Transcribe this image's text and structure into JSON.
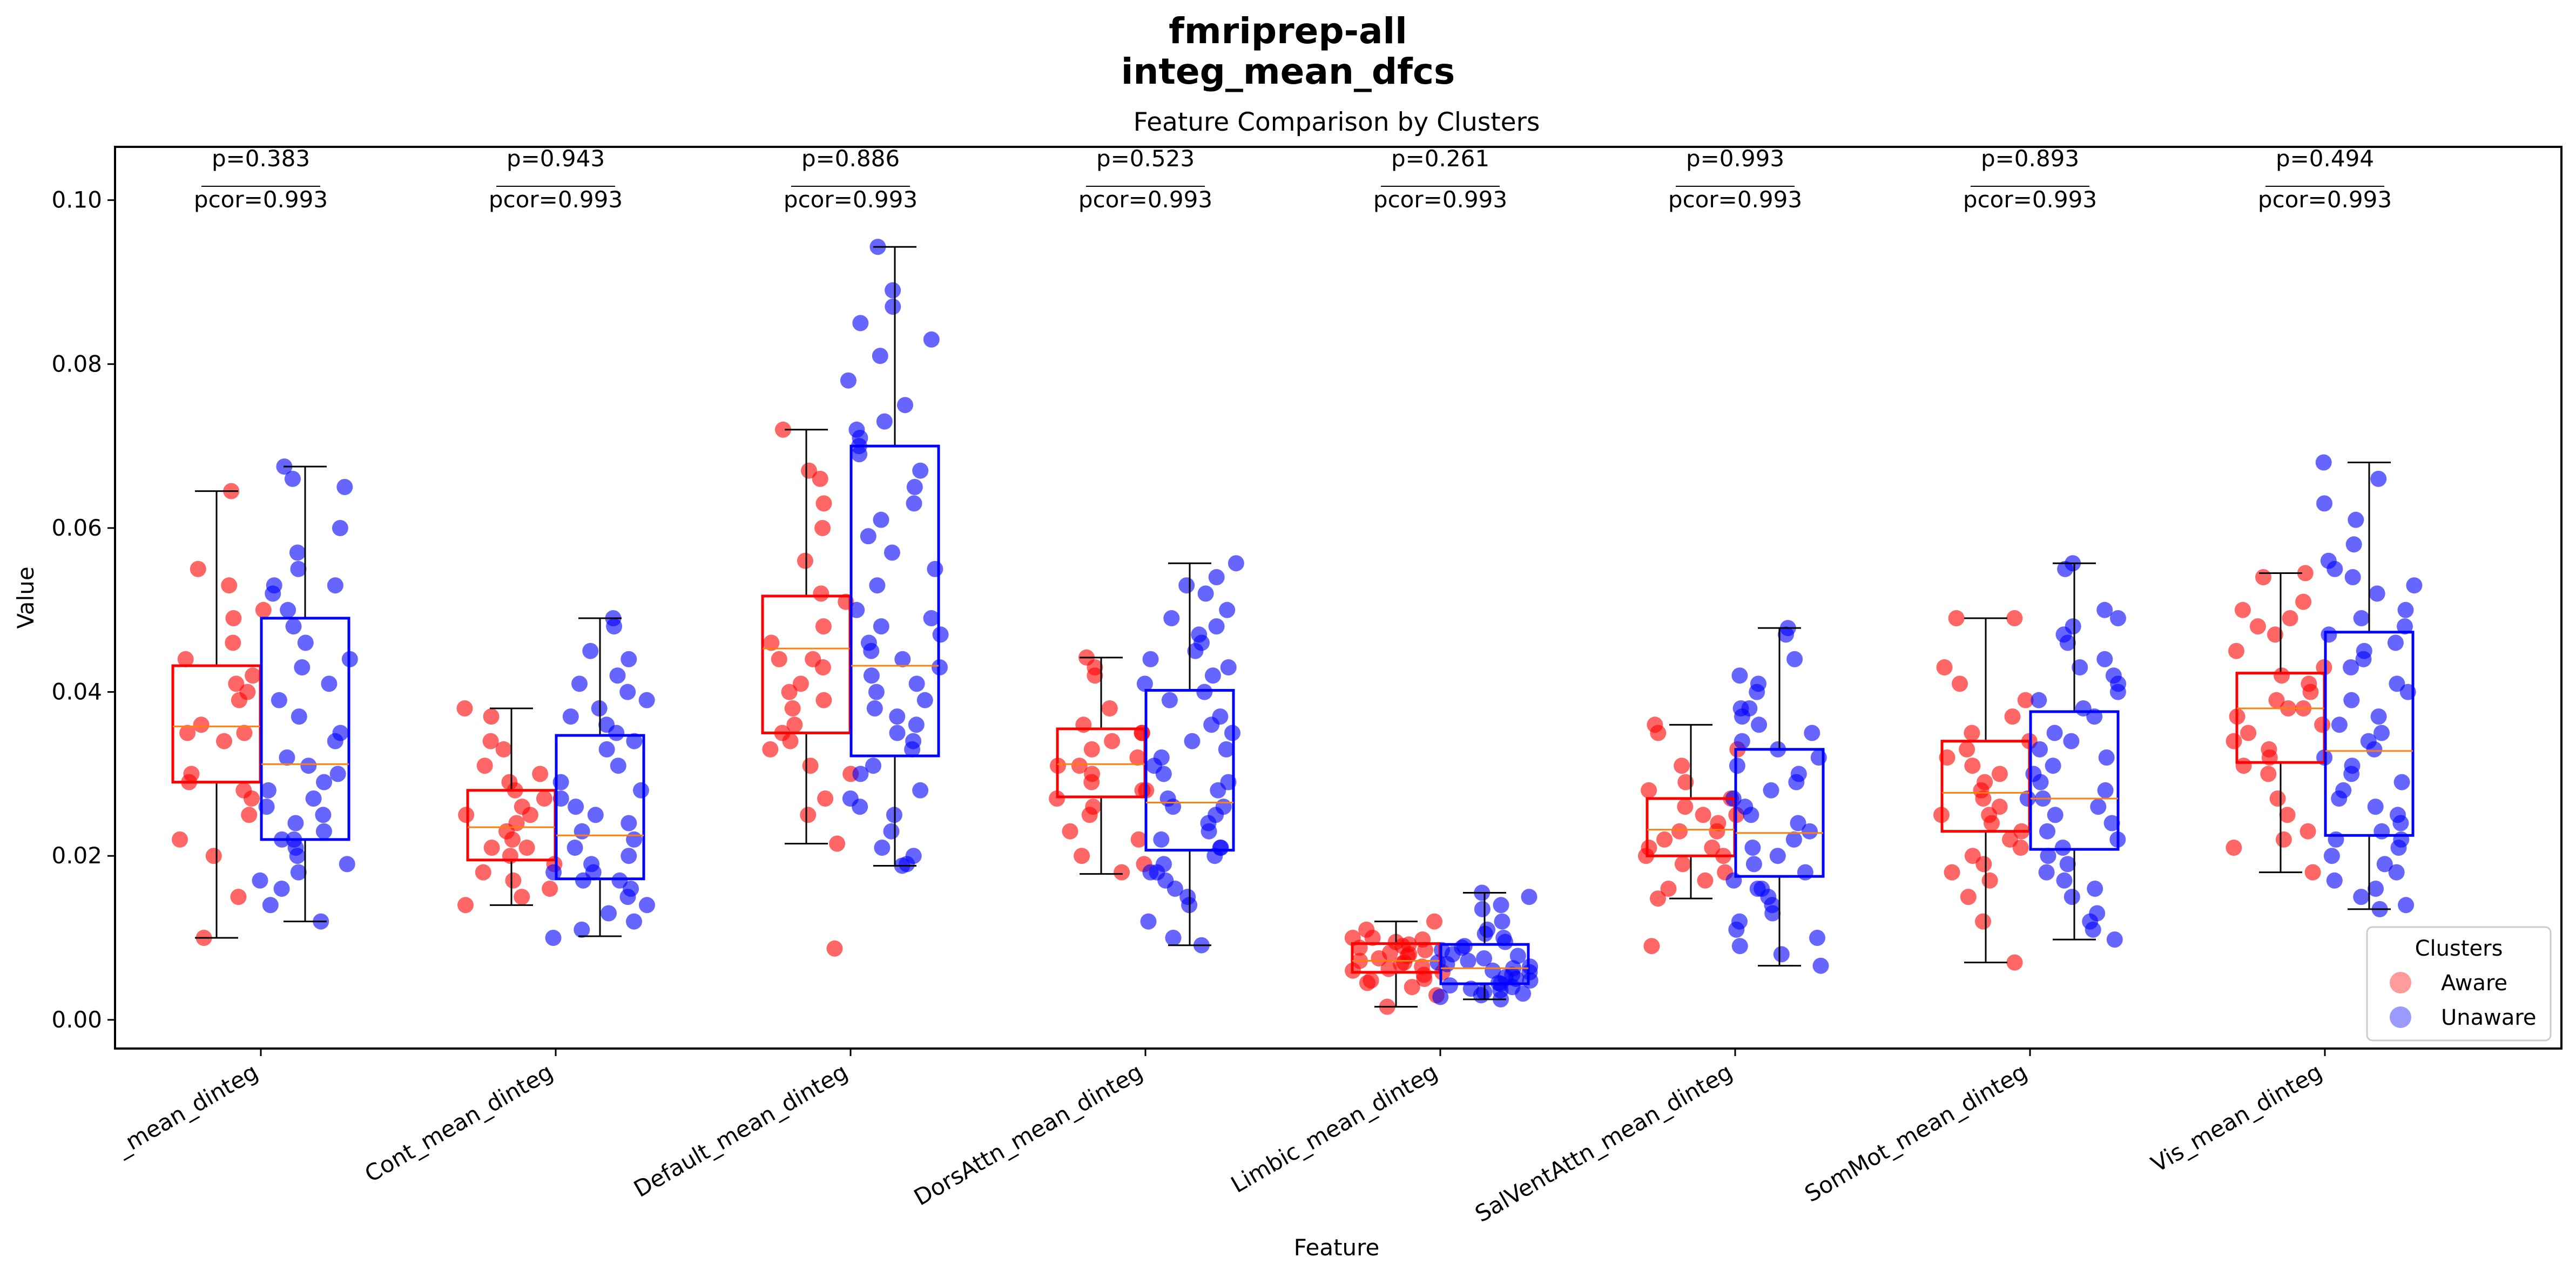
{
  "figure": {
    "title_line1": "fmriprep-all",
    "title_line2": "integ_mean_dfcs"
  },
  "chart_data": {
    "type": "box",
    "title": "Feature Comparison by Clusters",
    "xlabel": "Feature",
    "ylabel": "Value",
    "ylim": [
      -0.0035,
      0.1065
    ],
    "yticks": [
      0.0,
      0.02,
      0.04,
      0.06,
      0.08,
      0.1
    ],
    "ytick_labels": [
      "0.00",
      "0.02",
      "0.04",
      "0.06",
      "0.08",
      "0.10"
    ],
    "grid": false,
    "legend": {
      "title": "Clusters",
      "placement": "lower-right",
      "entries": [
        {
          "name": "Aware",
          "color": "#ff6666"
        },
        {
          "name": "Unaware",
          "color": "#6666ff"
        }
      ]
    },
    "series_colors": {
      "Aware": "#ff0000",
      "Unaware": "#0000ff",
      "median": "#ff7f0e"
    },
    "categories": [
      "_mean_dinteg",
      "Cont_mean_dinteg",
      "Default_mean_dinteg",
      "DorsAttn_mean_dinteg",
      "Limbic_mean_dinteg",
      "SalVentAttn_mean_dinteg",
      "SomMot_mean_dinteg",
      "Vis_mean_dinteg"
    ],
    "annotations": [
      {
        "p": "p=0.383",
        "pcor": "pcor=0.993"
      },
      {
        "p": "p=0.943",
        "pcor": "pcor=0.993"
      },
      {
        "p": "p=0.886",
        "pcor": "pcor=0.993"
      },
      {
        "p": "p=0.523",
        "pcor": "pcor=0.993"
      },
      {
        "p": "p=0.261",
        "pcor": "pcor=0.993"
      },
      {
        "p": "p=0.993",
        "pcor": "pcor=0.993"
      },
      {
        "p": "p=0.893",
        "pcor": "pcor=0.993"
      },
      {
        "p": "p=0.494",
        "pcor": "pcor=0.993"
      }
    ],
    "boxes": [
      {
        "Aware": {
          "whislo": 0.01,
          "q1": 0.029,
          "med": 0.0358,
          "q3": 0.0432,
          "whishi": 0.0645
        },
        "Unaware": {
          "whislo": 0.012,
          "q1": 0.022,
          "med": 0.0312,
          "q3": 0.049,
          "whishi": 0.0675
        }
      },
      {
        "Aware": {
          "whislo": 0.014,
          "q1": 0.0195,
          "med": 0.0235,
          "q3": 0.028,
          "whishi": 0.038
        },
        "Unaware": {
          "whislo": 0.0102,
          "q1": 0.0172,
          "med": 0.0225,
          "q3": 0.0347,
          "whishi": 0.049
        }
      },
      {
        "Aware": {
          "whislo": 0.0215,
          "q1": 0.035,
          "med": 0.0453,
          "q3": 0.0517,
          "whishi": 0.072
        },
        "Unaware": {
          "whislo": 0.0188,
          "q1": 0.0322,
          "med": 0.0432,
          "q3": 0.07,
          "whishi": 0.0943
        }
      },
      {
        "Aware": {
          "whislo": 0.0178,
          "q1": 0.0272,
          "med": 0.0312,
          "q3": 0.0355,
          "whishi": 0.0442
        },
        "Unaware": {
          "whislo": 0.0091,
          "q1": 0.0207,
          "med": 0.0265,
          "q3": 0.0402,
          "whishi": 0.0557
        }
      },
      {
        "Aware": {
          "whislo": 0.0016,
          "q1": 0.0058,
          "med": 0.0072,
          "q3": 0.0093,
          "whishi": 0.012
        },
        "Unaware": {
          "whislo": 0.0025,
          "q1": 0.0044,
          "med": 0.0063,
          "q3": 0.0092,
          "whishi": 0.0155
        }
      },
      {
        "Aware": {
          "whislo": 0.0148,
          "q1": 0.02,
          "med": 0.0232,
          "q3": 0.027,
          "whishi": 0.036
        },
        "Unaware": {
          "whislo": 0.0066,
          "q1": 0.0175,
          "med": 0.0228,
          "q3": 0.033,
          "whishi": 0.0478
        }
      },
      {
        "Aware": {
          "whislo": 0.007,
          "q1": 0.023,
          "med": 0.0277,
          "q3": 0.034,
          "whishi": 0.049
        },
        "Unaware": {
          "whislo": 0.0098,
          "q1": 0.0208,
          "med": 0.027,
          "q3": 0.0376,
          "whishi": 0.0557
        }
      },
      {
        "Aware": {
          "whislo": 0.018,
          "q1": 0.0314,
          "med": 0.038,
          "q3": 0.0423,
          "whishi": 0.0545
        },
        "Unaware": {
          "whislo": 0.0135,
          "q1": 0.0225,
          "med": 0.0328,
          "q3": 0.0473,
          "whishi": 0.068
        }
      }
    ],
    "points": [
      {
        "Aware": [
          0.0645,
          0.055,
          0.053,
          0.05,
          0.049,
          0.046,
          0.044,
          0.042,
          0.041,
          0.04,
          0.039,
          0.036,
          0.035,
          0.035,
          0.034,
          0.03,
          0.029,
          0.028,
          0.027,
          0.025,
          0.022,
          0.02,
          0.015,
          0.01
        ],
        "Unaware": [
          0.0675,
          0.066,
          0.065,
          0.06,
          0.057,
          0.055,
          0.053,
          0.053,
          0.052,
          0.05,
          0.048,
          0.046,
          0.044,
          0.043,
          0.041,
          0.039,
          0.037,
          0.035,
          0.034,
          0.032,
          0.031,
          0.03,
          0.029,
          0.028,
          0.027,
          0.026,
          0.025,
          0.024,
          0.023,
          0.022,
          0.022,
          0.021,
          0.02,
          0.019,
          0.018,
          0.017,
          0.016,
          0.014,
          0.012
        ]
      },
      {
        "Aware": [
          0.038,
          0.037,
          0.034,
          0.033,
          0.031,
          0.03,
          0.029,
          0.028,
          0.027,
          0.026,
          0.025,
          0.025,
          0.024,
          0.023,
          0.022,
          0.021,
          0.021,
          0.02,
          0.019,
          0.018,
          0.017,
          0.016,
          0.015,
          0.014
        ],
        "Unaware": [
          0.049,
          0.048,
          0.045,
          0.044,
          0.042,
          0.041,
          0.04,
          0.039,
          0.038,
          0.037,
          0.036,
          0.035,
          0.034,
          0.033,
          0.031,
          0.029,
          0.028,
          0.027,
          0.026,
          0.025,
          0.024,
          0.023,
          0.022,
          0.021,
          0.02,
          0.019,
          0.018,
          0.018,
          0.017,
          0.017,
          0.016,
          0.015,
          0.014,
          0.013,
          0.012,
          0.011,
          0.01
        ]
      },
      {
        "Aware": [
          0.072,
          0.067,
          0.066,
          0.063,
          0.06,
          0.056,
          0.052,
          0.051,
          0.048,
          0.046,
          0.044,
          0.044,
          0.043,
          0.041,
          0.04,
          0.039,
          0.038,
          0.036,
          0.035,
          0.034,
          0.033,
          0.031,
          0.03,
          0.027,
          0.025,
          0.0215,
          0.0087
        ],
        "Unaware": [
          0.0943,
          0.089,
          0.087,
          0.085,
          0.083,
          0.081,
          0.078,
          0.075,
          0.073,
          0.072,
          0.071,
          0.07,
          0.069,
          0.067,
          0.065,
          0.063,
          0.061,
          0.059,
          0.057,
          0.055,
          0.053,
          0.05,
          0.049,
          0.048,
          0.047,
          0.046,
          0.045,
          0.044,
          0.043,
          0.042,
          0.041,
          0.04,
          0.039,
          0.038,
          0.037,
          0.036,
          0.035,
          0.034,
          0.033,
          0.031,
          0.03,
          0.028,
          0.027,
          0.026,
          0.025,
          0.023,
          0.021,
          0.02,
          0.019,
          0.0188
        ]
      },
      {
        "Aware": [
          0.0442,
          0.043,
          0.042,
          0.038,
          0.036,
          0.035,
          0.035,
          0.034,
          0.033,
          0.032,
          0.031,
          0.031,
          0.03,
          0.029,
          0.028,
          0.028,
          0.027,
          0.026,
          0.025,
          0.023,
          0.022,
          0.02,
          0.019,
          0.018
        ],
        "Unaware": [
          0.0557,
          0.054,
          0.053,
          0.052,
          0.05,
          0.049,
          0.048,
          0.047,
          0.046,
          0.045,
          0.044,
          0.043,
          0.042,
          0.041,
          0.04,
          0.039,
          0.037,
          0.036,
          0.035,
          0.034,
          0.033,
          0.032,
          0.031,
          0.03,
          0.029,
          0.028,
          0.027,
          0.026,
          0.026,
          0.025,
          0.024,
          0.023,
          0.022,
          0.021,
          0.021,
          0.02,
          0.019,
          0.018,
          0.018,
          0.017,
          0.016,
          0.015,
          0.014,
          0.012,
          0.01,
          0.0091
        ]
      },
      {
        "Aware": [
          0.012,
          0.011,
          0.01,
          0.01,
          0.0098,
          0.0095,
          0.0092,
          0.009,
          0.0088,
          0.0085,
          0.0082,
          0.008,
          0.0078,
          0.0075,
          0.0072,
          0.007,
          0.0068,
          0.0065,
          0.0062,
          0.006,
          0.0058,
          0.0055,
          0.005,
          0.0048,
          0.0045,
          0.004,
          0.003,
          0.0016
        ],
        "Unaware": [
          0.0155,
          0.015,
          0.014,
          0.0135,
          0.012,
          0.011,
          0.0105,
          0.01,
          0.0095,
          0.009,
          0.0088,
          0.0085,
          0.008,
          0.0078,
          0.0075,
          0.0072,
          0.007,
          0.0068,
          0.0065,
          0.0063,
          0.006,
          0.0058,
          0.0055,
          0.0052,
          0.005,
          0.0048,
          0.0045,
          0.0044,
          0.0042,
          0.004,
          0.0038,
          0.0036,
          0.0034,
          0.0032,
          0.003,
          0.0028,
          0.0025
        ]
      },
      {
        "Aware": [
          0.036,
          0.035,
          0.033,
          0.031,
          0.029,
          0.028,
          0.027,
          0.026,
          0.025,
          0.025,
          0.024,
          0.023,
          0.023,
          0.022,
          0.021,
          0.021,
          0.02,
          0.02,
          0.019,
          0.018,
          0.017,
          0.016,
          0.0148,
          0.009
        ],
        "Unaware": [
          0.0478,
          0.047,
          0.044,
          0.042,
          0.041,
          0.04,
          0.038,
          0.038,
          0.037,
          0.036,
          0.035,
          0.034,
          0.033,
          0.032,
          0.031,
          0.03,
          0.029,
          0.028,
          0.027,
          0.026,
          0.025,
          0.024,
          0.023,
          0.022,
          0.021,
          0.02,
          0.019,
          0.018,
          0.017,
          0.016,
          0.016,
          0.015,
          0.014,
          0.013,
          0.012,
          0.011,
          0.01,
          0.009,
          0.008,
          0.0066
        ]
      },
      {
        "Aware": [
          0.049,
          0.049,
          0.043,
          0.041,
          0.039,
          0.037,
          0.035,
          0.034,
          0.033,
          0.032,
          0.031,
          0.03,
          0.029,
          0.028,
          0.027,
          0.026,
          0.025,
          0.025,
          0.024,
          0.023,
          0.022,
          0.021,
          0.02,
          0.019,
          0.018,
          0.017,
          0.015,
          0.012,
          0.007
        ],
        "Unaware": [
          0.0557,
          0.055,
          0.05,
          0.049,
          0.048,
          0.047,
          0.046,
          0.044,
          0.043,
          0.042,
          0.041,
          0.04,
          0.039,
          0.038,
          0.037,
          0.035,
          0.034,
          0.033,
          0.032,
          0.031,
          0.03,
          0.029,
          0.028,
          0.027,
          0.027,
          0.026,
          0.025,
          0.024,
          0.023,
          0.022,
          0.021,
          0.02,
          0.019,
          0.018,
          0.017,
          0.016,
          0.015,
          0.013,
          0.012,
          0.011,
          0.0098
        ]
      },
      {
        "Aware": [
          0.0545,
          0.054,
          0.051,
          0.05,
          0.049,
          0.048,
          0.047,
          0.045,
          0.043,
          0.042,
          0.041,
          0.04,
          0.039,
          0.038,
          0.038,
          0.037,
          0.036,
          0.035,
          0.034,
          0.033,
          0.032,
          0.031,
          0.03,
          0.027,
          0.025,
          0.023,
          0.022,
          0.021,
          0.018
        ],
        "Unaware": [
          0.068,
          0.066,
          0.063,
          0.061,
          0.058,
          0.056,
          0.055,
          0.054,
          0.053,
          0.052,
          0.05,
          0.049,
          0.048,
          0.047,
          0.046,
          0.045,
          0.044,
          0.043,
          0.041,
          0.04,
          0.039,
          0.037,
          0.036,
          0.035,
          0.034,
          0.033,
          0.032,
          0.031,
          0.03,
          0.029,
          0.028,
          0.027,
          0.026,
          0.025,
          0.024,
          0.023,
          0.022,
          0.022,
          0.021,
          0.02,
          0.019,
          0.018,
          0.017,
          0.016,
          0.015,
          0.014,
          0.0135
        ]
      }
    ]
  }
}
